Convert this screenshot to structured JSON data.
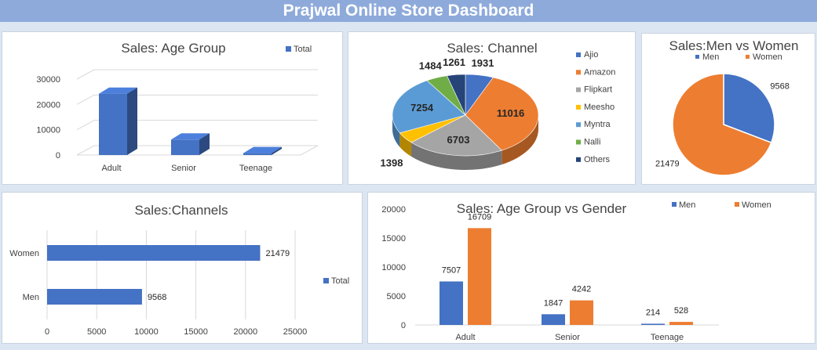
{
  "dashboard": {
    "title": "Prajwal Online Store Dashboard"
  },
  "colors": {
    "blue": "#4472c4",
    "orange": "#ed7d31",
    "gray": "#a5a5a5",
    "yellow": "#ffc000",
    "lightblue": "#5b9bd5",
    "green": "#70ad47",
    "navy": "#264478",
    "banner": "#8eaadb"
  },
  "chart_data": [
    {
      "id": "age_group",
      "type": "bar",
      "title": "Sales: Age Group",
      "categories": [
        "Adult",
        "Senior",
        "Teenage"
      ],
      "series": [
        {
          "name": "Total",
          "values": [
            24216,
            6089,
            742
          ]
        }
      ],
      "y_ticks": [
        "0",
        "10000",
        "20000",
        "30000"
      ],
      "ylim": [
        0,
        30000
      ],
      "legend": "top-right",
      "grid": true,
      "style": "3d-column"
    },
    {
      "id": "channel",
      "type": "pie",
      "title": "Sales: Channel",
      "labels": [
        "Ajio",
        "Amazon",
        "Flipkart",
        "Meesho",
        "Myntra",
        "Nalli",
        "Others"
      ],
      "values": [
        1931,
        11016,
        6703,
        1398,
        7254,
        1484,
        1261
      ],
      "value_labels": [
        "1931",
        "11016",
        "6703",
        "1398",
        "7254",
        "1484",
        "1261"
      ],
      "legend": "right",
      "style": "3d-pie"
    },
    {
      "id": "men_women",
      "type": "pie",
      "title": "Sales:Men vs Women",
      "labels": [
        "Men",
        "Women"
      ],
      "values": [
        9568,
        21479
      ],
      "value_labels": [
        "9568",
        "21479"
      ],
      "legend": "top"
    },
    {
      "id": "channels_gender",
      "type": "bar",
      "orientation": "horizontal",
      "title": "Sales:Channels",
      "categories": [
        "Women",
        "Men"
      ],
      "series": [
        {
          "name": "Total",
          "values": [
            21479,
            9568
          ]
        }
      ],
      "value_labels": [
        "21479",
        "9568"
      ],
      "x_ticks": [
        "0",
        "5000",
        "10000",
        "15000",
        "20000",
        "25000"
      ],
      "xlim": [
        0,
        25000
      ],
      "legend": "right",
      "grid": true
    },
    {
      "id": "age_gender",
      "type": "bar",
      "title": "Sales: Age Group vs Gender",
      "categories": [
        "Adult",
        "Senior",
        "Teenage"
      ],
      "series": [
        {
          "name": "Men",
          "values": [
            7507,
            1847,
            214
          ],
          "labels": [
            "7507",
            "1847",
            "214"
          ]
        },
        {
          "name": "Women",
          "values": [
            16709,
            4242,
            528
          ],
          "labels": [
            "16709",
            "4242",
            "528"
          ]
        }
      ],
      "y_ticks": [
        "0",
        "5000",
        "10000",
        "15000",
        "20000"
      ],
      "ylim": [
        0,
        20000
      ],
      "legend": "top-right",
      "grid": false
    }
  ]
}
